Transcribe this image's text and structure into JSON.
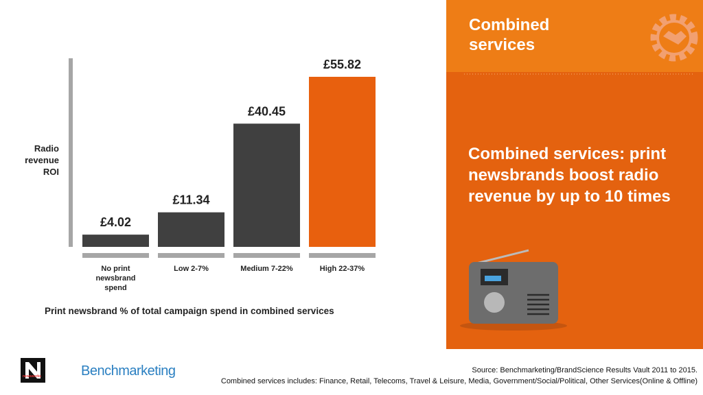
{
  "chart_data": {
    "type": "bar",
    "x_label": "Print newsbrand % of total campaign spend in combined services",
    "y_label": "Radio revenue ROI",
    "categories": [
      "No print newsbrand spend",
      "Low 2-7%",
      "Medium 7-22%",
      "High 22-37%"
    ],
    "values": [
      4.02,
      11.34,
      40.45,
      55.82
    ],
    "value_labels": [
      "£4.02",
      "£11.34",
      "£40.45",
      "£55.82"
    ],
    "colors": [
      "#404040",
      "#404040",
      "#404040",
      "#e8600e"
    ]
  },
  "panel": {
    "heading": "Combined services",
    "headline": "Combined services: print newsbrands boost radio revenue by up to 10 times"
  },
  "footer": {
    "logo_n": "newsworks",
    "logo_text": "Benchmarketing",
    "source": "Source: Benchmarketing/BrandScience Results Vault 2011 to 2015.",
    "note": "Combined services includes: Finance, Retail, Telecoms, Travel & Leisure, Media, Government/Social/Political, Other Services(Online & Offline)"
  }
}
